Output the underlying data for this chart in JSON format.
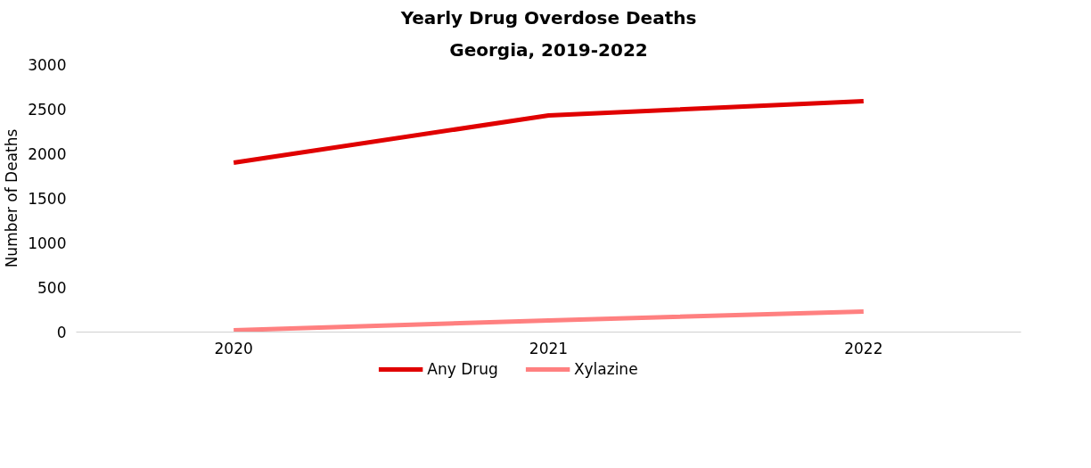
{
  "chart_data": {
    "type": "line",
    "title": "Yearly Drug Overdose Deaths",
    "subtitle": "Georgia, 2019-2022",
    "ylabel": "Number of Deaths",
    "categories": [
      "2020",
      "2021",
      "2022"
    ],
    "series": [
      {
        "name": "Any Drug",
        "color": "#e00000",
        "values": [
          1900,
          2430,
          2590
        ]
      },
      {
        "name": "Xylazine",
        "color": "#ff8080",
        "values": [
          20,
          130,
          230
        ]
      }
    ],
    "ylim": [
      0,
      3000
    ],
    "yticks": [
      0,
      500,
      1000,
      1500,
      2000,
      2500,
      3000
    ],
    "grid": false,
    "legend": "bottom",
    "marker": "none",
    "line_style": "solid"
  }
}
